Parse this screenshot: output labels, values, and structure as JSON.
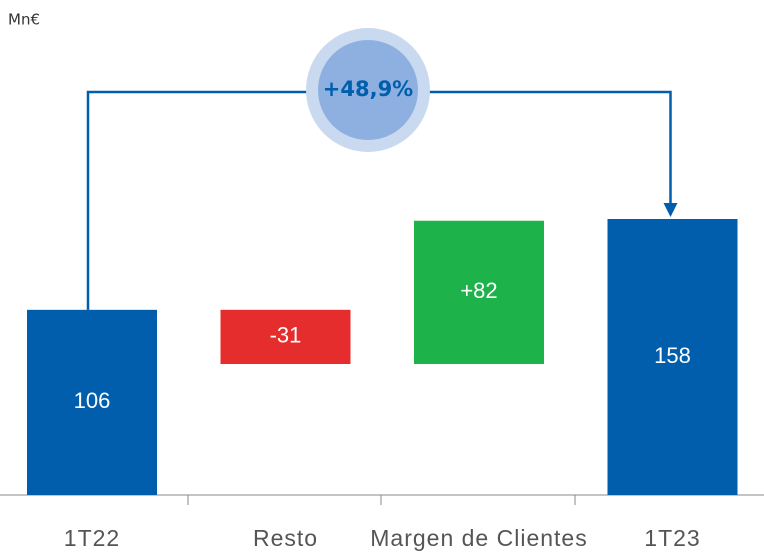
{
  "chart_data": {
    "type": "waterfall",
    "unit_label": "Mn€",
    "categories": [
      "1T22",
      "Resto",
      "Margen de Clientes",
      "1T23"
    ],
    "values": [
      106,
      -31,
      82,
      158
    ],
    "value_labels": [
      "106",
      "-31",
      "+82",
      "158"
    ],
    "colors": [
      "#005ead",
      "#e52d2d",
      "#1db34a",
      "#005ead"
    ],
    "annotation": "+48,9%"
  }
}
